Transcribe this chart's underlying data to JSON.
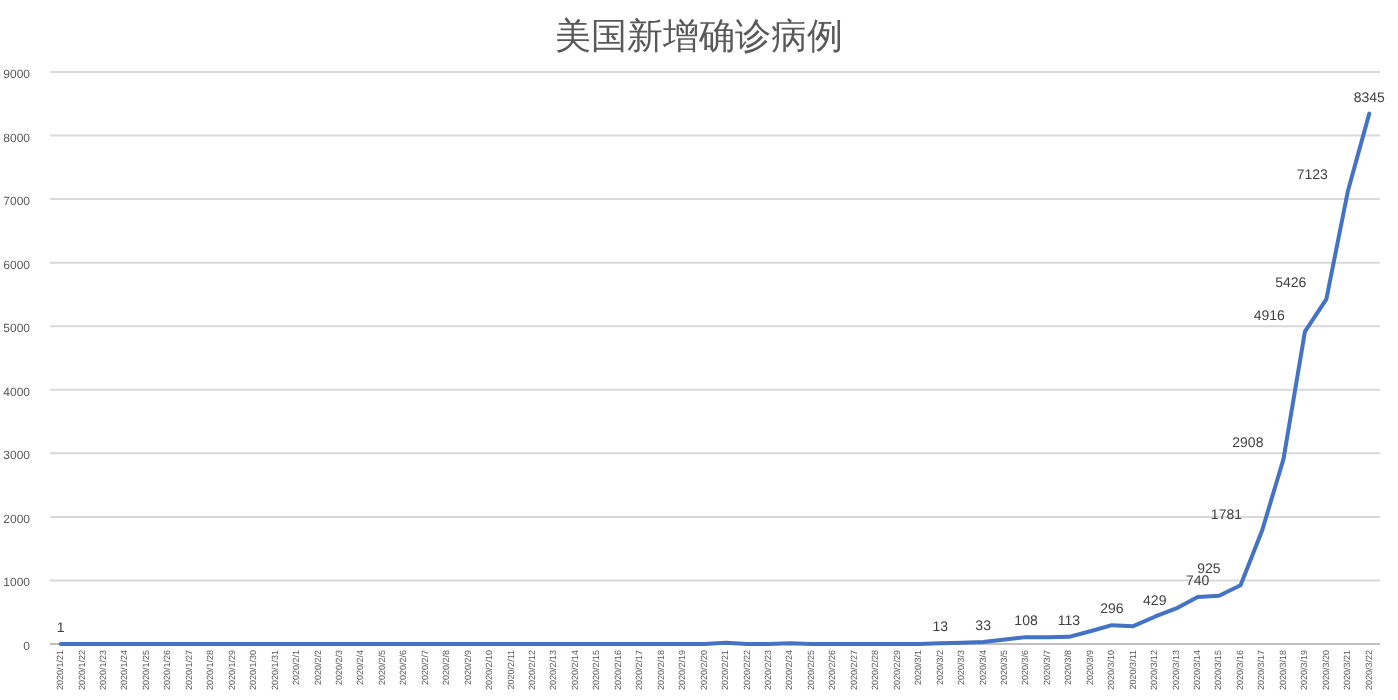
{
  "chart_data": {
    "type": "line",
    "title": "美国新增确诊病例",
    "categories": [
      "2020/1/21",
      "2020/1/22",
      "2020/1/23",
      "2020/1/24",
      "2020/1/25",
      "2020/1/26",
      "2020/1/27",
      "2020/1/28",
      "2020/1/29",
      "2020/1/30",
      "2020/1/31",
      "2020/2/1",
      "2020/2/2",
      "2020/2/3",
      "2020/2/4",
      "2020/2/5",
      "2020/2/6",
      "2020/2/7",
      "2020/2/8",
      "2020/2/9",
      "2020/2/10",
      "2020/2/11",
      "2020/2/12",
      "2020/2/13",
      "2020/2/14",
      "2020/2/15",
      "2020/2/16",
      "2020/2/17",
      "2020/2/18",
      "2020/2/19",
      "2020/2/20",
      "2020/2/21",
      "2020/2/22",
      "2020/2/23",
      "2020/2/24",
      "2020/2/25",
      "2020/2/26",
      "2020/2/27",
      "2020/2/28",
      "2020/2/29",
      "2020/3/1",
      "2020/3/2",
      "2020/3/3",
      "2020/3/4",
      "2020/3/5",
      "2020/3/6",
      "2020/3/7",
      "2020/3/8",
      "2020/3/9",
      "2020/3/10",
      "2020/3/11",
      "2020/3/12",
      "2020/3/13",
      "2020/3/14",
      "2020/3/15",
      "2020/3/16",
      "2020/3/17",
      "2020/3/18",
      "2020/3/19",
      "2020/3/20",
      "2020/3/21",
      "2020/3/22"
    ],
    "series": [
      {
        "color": "#4472c4",
        "values": [
          1,
          0,
          0,
          0,
          0,
          0,
          0,
          0,
          0,
          0,
          0,
          0,
          0,
          0,
          0,
          0,
          0,
          0,
          0,
          0,
          0,
          0,
          0,
          0,
          0,
          0,
          0,
          0,
          0,
          0,
          0,
          20,
          0,
          0,
          10,
          0,
          0,
          0,
          0,
          0,
          0,
          13,
          20,
          33,
          70,
          108,
          105,
          113,
          200,
          296,
          280,
          429,
          560,
          740,
          760,
          925,
          1781,
          2908,
          4916,
          5426,
          7123,
          8345
        ],
        "value_labels": [
          "1",
          null,
          null,
          null,
          null,
          null,
          null,
          null,
          null,
          null,
          null,
          null,
          null,
          null,
          null,
          null,
          null,
          null,
          null,
          null,
          null,
          null,
          null,
          null,
          null,
          null,
          null,
          null,
          null,
          null,
          null,
          null,
          null,
          null,
          null,
          null,
          null,
          null,
          null,
          null,
          null,
          "13",
          null,
          "33",
          null,
          "108",
          null,
          "113",
          null,
          "296",
          null,
          "429",
          null,
          "740",
          null,
          "925",
          "1781",
          "2908",
          "4916",
          "5426",
          "7123",
          "8345"
        ]
      }
    ],
    "ylim": [
      0,
      9000
    ],
    "yticks": [
      0,
      1000,
      2000,
      3000,
      4000,
      5000,
      6000,
      7000,
      8000,
      9000
    ],
    "grid": "y",
    "marker": "none",
    "line_style": "solid"
  }
}
